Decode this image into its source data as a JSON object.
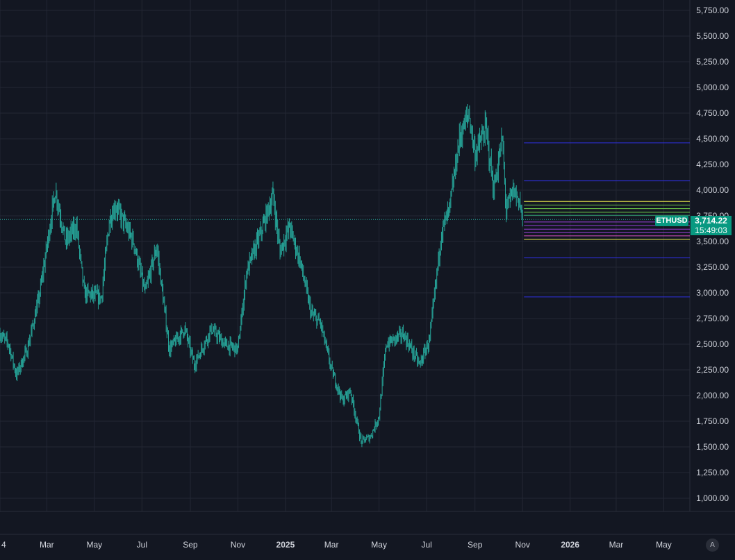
{
  "chart_data": {
    "type": "candlestick",
    "symbol": "ETHUSD",
    "last_price": "3,714.22",
    "countdown": "15:49:03",
    "ylim": [
      850,
      5850
    ],
    "y_ticks": [
      "5,750.00",
      "5,500.00",
      "5,250.00",
      "5,000.00",
      "4,750.00",
      "4,500.00",
      "4,250.00",
      "4,000.00",
      "3,750.00",
      "3,500.00",
      "3,250.00",
      "3,000.00",
      "2,750.00",
      "2,500.00",
      "2,250.00",
      "2,000.00",
      "1,750.00",
      "1,500.00",
      "1,250.00",
      "1,000.00"
    ],
    "y_tick_values": [
      5750,
      5500,
      5250,
      5000,
      4750,
      4500,
      4250,
      4000,
      3750,
      3500,
      3250,
      3000,
      2750,
      2500,
      2250,
      2000,
      1750,
      1500,
      1250,
      1000
    ],
    "x_ticks": [
      "4",
      "Mar",
      "May",
      "Jul",
      "Sep",
      "Nov",
      "2025",
      "Mar",
      "May",
      "Jul",
      "Sep",
      "Nov",
      "2026",
      "Mar",
      "May"
    ],
    "x_tick_dates": [
      "2024-01-01",
      "2024-03-01",
      "2024-05-01",
      "2024-07-01",
      "2024-09-01",
      "2024-11-01",
      "2025-01-01",
      "2025-03-01",
      "2025-05-01",
      "2025-07-01",
      "2025-09-01",
      "2025-11-01",
      "2026-01-01",
      "2026-03-01",
      "2026-05-01"
    ],
    "x_tick_major": [
      "2025",
      "2026"
    ],
    "price_path": [
      {
        "date": "2024-01-01",
        "price": 2600
      },
      {
        "date": "2024-01-12",
        "price": 2500
      },
      {
        "date": "2024-01-22",
        "price": 2200
      },
      {
        "date": "2024-02-05",
        "price": 2450
      },
      {
        "date": "2024-02-20",
        "price": 2950
      },
      {
        "date": "2024-03-12",
        "price": 4000
      },
      {
        "date": "2024-03-25",
        "price": 3500
      },
      {
        "date": "2024-04-08",
        "price": 3650
      },
      {
        "date": "2024-04-18",
        "price": 3000
      },
      {
        "date": "2024-05-10",
        "price": 2950
      },
      {
        "date": "2024-05-20",
        "price": 3700
      },
      {
        "date": "2024-05-28",
        "price": 3850
      },
      {
        "date": "2024-06-20",
        "price": 3500
      },
      {
        "date": "2024-07-05",
        "price": 3000
      },
      {
        "date": "2024-07-20",
        "price": 3450
      },
      {
        "date": "2024-08-05",
        "price": 2450
      },
      {
        "date": "2024-08-25",
        "price": 2650
      },
      {
        "date": "2024-09-06",
        "price": 2300
      },
      {
        "date": "2024-09-28",
        "price": 2650
      },
      {
        "date": "2024-10-15",
        "price": 2500
      },
      {
        "date": "2024-11-01",
        "price": 2450
      },
      {
        "date": "2024-11-12",
        "price": 3200
      },
      {
        "date": "2024-12-01",
        "price": 3600
      },
      {
        "date": "2024-12-16",
        "price": 3950
      },
      {
        "date": "2024-12-25",
        "price": 3400
      },
      {
        "date": "2025-01-06",
        "price": 3650
      },
      {
        "date": "2025-01-20",
        "price": 3300
      },
      {
        "date": "2025-02-03",
        "price": 2800
      },
      {
        "date": "2025-02-15",
        "price": 2700
      },
      {
        "date": "2025-03-01",
        "price": 2250
      },
      {
        "date": "2025-03-15",
        "price": 1950
      },
      {
        "date": "2025-03-25",
        "price": 2050
      },
      {
        "date": "2025-04-08",
        "price": 1550
      },
      {
        "date": "2025-04-20",
        "price": 1600
      },
      {
        "date": "2025-05-01",
        "price": 1800
      },
      {
        "date": "2025-05-10",
        "price": 2500
      },
      {
        "date": "2025-06-01",
        "price": 2600
      },
      {
        "date": "2025-06-22",
        "price": 2300
      },
      {
        "date": "2025-07-05",
        "price": 2550
      },
      {
        "date": "2025-07-20",
        "price": 3600
      },
      {
        "date": "2025-07-30",
        "price": 3800
      },
      {
        "date": "2025-08-12",
        "price": 4500
      },
      {
        "date": "2025-08-24",
        "price": 4750
      },
      {
        "date": "2025-09-01",
        "price": 4350
      },
      {
        "date": "2025-09-15",
        "price": 4600
      },
      {
        "date": "2025-09-25",
        "price": 4000
      },
      {
        "date": "2025-10-06",
        "price": 4500
      },
      {
        "date": "2025-10-11",
        "price": 3800
      },
      {
        "date": "2025-10-20",
        "price": 4000
      },
      {
        "date": "2025-10-28",
        "price": 3900
      },
      {
        "date": "2025-11-01",
        "price": 3714
      }
    ],
    "levels": [
      {
        "price": 4460,
        "color": "#2f2fe0"
      },
      {
        "price": 4090,
        "color": "#2f2fe0"
      },
      {
        "price": 3890,
        "color": "#e8e84a"
      },
      {
        "price": 3855,
        "color": "#6fcf4a"
      },
      {
        "price": 3820,
        "color": "#6fcf4a"
      },
      {
        "price": 3785,
        "color": "#6fcf4a"
      },
      {
        "price": 3755,
        "color": "#2f9e6e"
      },
      {
        "price": 3690,
        "color": "#9a3fd6"
      },
      {
        "price": 3655,
        "color": "#9a3fd6"
      },
      {
        "price": 3620,
        "color": "#9a3fd6"
      },
      {
        "price": 3585,
        "color": "#9a3fd6"
      },
      {
        "price": 3555,
        "color": "#d64fbf"
      },
      {
        "price": 3520,
        "color": "#e8e84a"
      },
      {
        "price": 3340,
        "color": "#2f2fe0"
      },
      {
        "price": 2960,
        "color": "#2f2fe0"
      }
    ],
    "colors": {
      "background": "#131722",
      "grid": "#232734",
      "candle": "#26a69a",
      "tag": "#089981",
      "text": "#d1d4dc"
    }
  },
  "controls": {
    "auto_scale_label": "A"
  }
}
